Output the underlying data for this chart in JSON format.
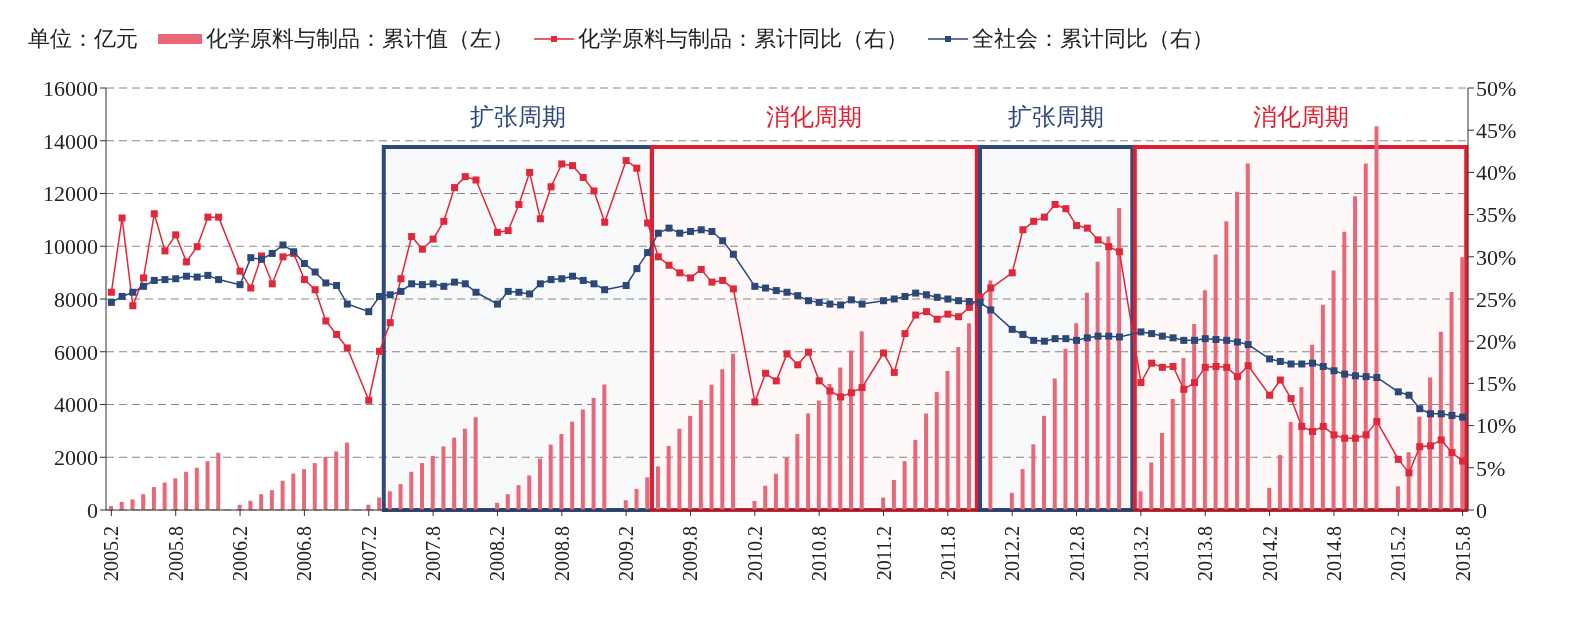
{
  "chart_data": {
    "type": "bar",
    "annotations": [
      "单位：亿元"
    ],
    "x": [
      "2005-02",
      "2005-03",
      "2005-04",
      "2005-05",
      "2005-06",
      "2005-07",
      "2005-08",
      "2005-09",
      "2005-10",
      "2005-11",
      "2005-12",
      "2006-02",
      "2006-03",
      "2006-04",
      "2006-05",
      "2006-06",
      "2006-07",
      "2006-08",
      "2006-09",
      "2006-10",
      "2006-11",
      "2006-12",
      "2007-02",
      "2007-03",
      "2007-04",
      "2007-05",
      "2007-06",
      "2007-07",
      "2007-08",
      "2007-09",
      "2007-10",
      "2007-11",
      "2007-12",
      "2008-02",
      "2008-03",
      "2008-04",
      "2008-05",
      "2008-06",
      "2008-07",
      "2008-08",
      "2008-09",
      "2008-10",
      "2008-11",
      "2008-12",
      "2009-02",
      "2009-03",
      "2009-04",
      "2009-05",
      "2009-06",
      "2009-07",
      "2009-08",
      "2009-09",
      "2009-10",
      "2009-11",
      "2009-12",
      "2010-02",
      "2010-03",
      "2010-04",
      "2010-05",
      "2010-06",
      "2010-07",
      "2010-08",
      "2010-09",
      "2010-10",
      "2010-11",
      "2010-12",
      "2011-02",
      "2011-03",
      "2011-04",
      "2011-05",
      "2011-06",
      "2011-07",
      "2011-08",
      "2011-09",
      "2011-10",
      "2011-11",
      "2011-12",
      "2012-02",
      "2012-03",
      "2012-04",
      "2012-05",
      "2012-06",
      "2012-07",
      "2012-08",
      "2012-09",
      "2012-10",
      "2012-11",
      "2012-12",
      "2013-02",
      "2013-03",
      "2013-04",
      "2013-05",
      "2013-06",
      "2013-07",
      "2013-08",
      "2013-09",
      "2013-10",
      "2013-11",
      "2013-12",
      "2014-02",
      "2014-03",
      "2014-04",
      "2014-05",
      "2014-06",
      "2014-07",
      "2014-08",
      "2014-09",
      "2014-10",
      "2014-11",
      "2014-12",
      "2015-02",
      "2015-03",
      "2015-04",
      "2015-05",
      "2015-06",
      "2015-07",
      "2015-08"
    ],
    "series": [
      {
        "name": "化学原料与制品：累计值（左）",
        "color": "#e8687a",
        "values": [
          150,
          310,
          400,
          600,
          870,
          1040,
          1200,
          1450,
          1600,
          1850,
          2170,
          200,
          350,
          600,
          750,
          1110,
          1380,
          1550,
          1780,
          2020,
          2220,
          2560,
          200,
          470,
          710,
          980,
          1450,
          1780,
          2050,
          2410,
          2740,
          3080,
          3520,
          270,
          600,
          940,
          1310,
          1950,
          2480,
          2880,
          3350,
          3810,
          4250,
          4760,
          370,
          800,
          1240,
          1650,
          2430,
          3080,
          3570,
          4170,
          4750,
          5340,
          5920,
          340,
          920,
          1370,
          1980,
          2880,
          3660,
          4150,
          4780,
          5400,
          6050,
          6780,
          470,
          1140,
          1850,
          2660,
          3660,
          4470,
          5270,
          6180,
          7080,
          null,
          8700,
          650,
          1550,
          2490,
          3570,
          4990,
          6110,
          7080,
          8240,
          9410,
          10370,
          11450,
          710,
          1800,
          2920,
          4210,
          5760,
          7050,
          8330,
          9690,
          10950,
          12070,
          13140,
          840,
          2090,
          3340,
          4660,
          6270,
          7780,
          9080,
          10550,
          11900,
          13140,
          14550,
          900,
          2190,
          3540,
          5020,
          6760,
          8270,
          9580
        ]
      },
      {
        "name": "化学原料与制品：累计同比（右）",
        "type": "line",
        "axis": "y2",
        "color": "#e0283a",
        "values": [
          25.8,
          34.6,
          24.2,
          27.5,
          35.1,
          30.7,
          32.6,
          29.4,
          31.2,
          34.7,
          34.7,
          28.3,
          26.3,
          30.1,
          26.8,
          30.0,
          30.4,
          27.3,
          26.1,
          22.4,
          20.8,
          19.2,
          13.0,
          18.8,
          22.2,
          27.4,
          32.4,
          30.9,
          32.1,
          34.2,
          38.2,
          39.5,
          39.1,
          32.9,
          33.1,
          36.2,
          40.0,
          34.5,
          38.3,
          41.0,
          40.8,
          39.4,
          37.8,
          34.1,
          41.4,
          40.5,
          34.0,
          30.0,
          29.0,
          28.1,
          27.5,
          28.5,
          27.0,
          27.2,
          26.2,
          12.8,
          16.2,
          15.3,
          18.5,
          17.2,
          18.7,
          15.3,
          14.1,
          13.4,
          13.9,
          14.5,
          18.6,
          16.3,
          20.9,
          23.1,
          23.5,
          22.6,
          23.2,
          22.9,
          24.0,
          25.2,
          26.3,
          28.1,
          33.2,
          34.2,
          34.7,
          36.2,
          35.7,
          33.7,
          33.4,
          32.0,
          31.2,
          30.6,
          15.1,
          17.4,
          16.9,
          17.0,
          14.3,
          15.1,
          16.9,
          17.0,
          16.9,
          15.8,
          17.1,
          13.6,
          15.4,
          13.2,
          9.9,
          9.3,
          9.9,
          8.9,
          8.5,
          8.5,
          8.9,
          10.5,
          6.0,
          4.4,
          7.5,
          7.6,
          8.3,
          6.8,
          5.8
        ]
      },
      {
        "name": "全社会：累计同比（右）",
        "type": "line",
        "axis": "y2",
        "color": "#2b4878",
        "values": [
          24.6,
          25.3,
          25.8,
          26.5,
          27.2,
          27.3,
          27.4,
          27.7,
          27.6,
          27.8,
          27.3,
          26.7,
          29.9,
          29.7,
          30.4,
          31.4,
          30.6,
          29.2,
          28.2,
          26.9,
          26.6,
          24.4,
          23.5,
          25.3,
          25.5,
          25.9,
          26.8,
          26.7,
          26.8,
          26.5,
          27.0,
          26.8,
          25.8,
          24.4,
          25.9,
          25.8,
          25.6,
          26.8,
          27.3,
          27.4,
          27.7,
          27.2,
          26.8,
          26.1,
          26.6,
          28.6,
          30.5,
          32.8,
          33.4,
          32.8,
          33.0,
          33.2,
          33.0,
          31.9,
          30.3,
          26.5,
          26.3,
          26.0,
          25.8,
          25.4,
          24.8,
          24.6,
          24.4,
          24.3,
          24.9,
          24.4,
          24.8,
          25.0,
          25.3,
          25.7,
          25.5,
          25.2,
          25.0,
          24.8,
          24.7,
          24.6,
          23.7,
          21.4,
          20.8,
          20.1,
          20.0,
          20.3,
          20.3,
          20.1,
          20.4,
          20.6,
          20.6,
          20.5,
          21.1,
          20.9,
          20.6,
          20.4,
          20.1,
          20.1,
          20.3,
          20.2,
          20.1,
          19.9,
          19.6,
          17.9,
          17.6,
          17.3,
          17.3,
          17.4,
          17.0,
          16.5,
          16.1,
          15.9,
          15.8,
          15.7,
          14.0,
          13.6,
          12.0,
          11.4,
          11.4,
          11.2,
          11.0
        ]
      }
    ],
    "xlim": [
      "2005-01-16",
      "2015-08-16"
    ],
    "xticks": [
      {
        "value": "2005-02",
        "label": "2005.2"
      },
      {
        "value": "2005-08",
        "label": "2005.8"
      },
      {
        "value": "2006-02",
        "label": "2006.2"
      },
      {
        "value": "2006-08",
        "label": "2006.8"
      },
      {
        "value": "2007-02",
        "label": "2007.2"
      },
      {
        "value": "2007-08",
        "label": "2007.8"
      },
      {
        "value": "2008-02",
        "label": "2008.2"
      },
      {
        "value": "2008-08",
        "label": "2008.8"
      },
      {
        "value": "2009-02",
        "label": "2009.2"
      },
      {
        "value": "2009-08",
        "label": "2009.8"
      },
      {
        "value": "2010-02",
        "label": "2010.2"
      },
      {
        "value": "2010-08",
        "label": "2010.8"
      },
      {
        "value": "2011-02",
        "label": "2011.2"
      },
      {
        "value": "2011-08",
        "label": "2011.8"
      },
      {
        "value": "2012-02",
        "label": "2012.2"
      },
      {
        "value": "2012-08",
        "label": "2012.8"
      },
      {
        "value": "2013-02",
        "label": "2013.2"
      },
      {
        "value": "2013-08",
        "label": "2013.8"
      },
      {
        "value": "2014-02",
        "label": "2014.2"
      },
      {
        "value": "2014-08",
        "label": "2014.8"
      },
      {
        "value": "2015-02",
        "label": "2015.2"
      },
      {
        "value": "2015-08",
        "label": "2015.8"
      }
    ],
    "ylim": [
      0,
      16000
    ],
    "yticks": [
      0,
      2000,
      4000,
      6000,
      8000,
      10000,
      12000,
      14000,
      16000
    ],
    "y2lim": [
      0,
      50
    ],
    "y2ticks": [
      {
        "value": 0,
        "label": "0"
      },
      {
        "value": 5,
        "label": "5%"
      },
      {
        "value": 10,
        "label": "10%"
      },
      {
        "value": 15,
        "label": "15%"
      },
      {
        "value": 20,
        "label": "20%"
      },
      {
        "value": 25,
        "label": "25%"
      },
      {
        "value": 30,
        "label": "30%"
      },
      {
        "value": 35,
        "label": "35%"
      },
      {
        "value": 40,
        "label": "40%"
      },
      {
        "value": 45,
        "label": "45%"
      },
      {
        "value": 50,
        "label": "50%"
      }
    ],
    "bands": [
      {
        "axis": "x",
        "from": "2007-03-13",
        "to": "2009-04-13",
        "label": "扩张周期",
        "color": "#2e4a7a"
      },
      {
        "axis": "x",
        "from": "2009-04-13",
        "to": "2011-10-22",
        "label": "消化周期",
        "color": "#e02030"
      },
      {
        "axis": "x",
        "from": "2011-11-01",
        "to": "2013-01-07",
        "label": "扩张周期",
        "color": "#2e4a7a"
      },
      {
        "axis": "x",
        "from": "2013-01-14",
        "to": "2015-08-11",
        "label": "消化周期",
        "color": "#e02030"
      }
    ],
    "grid": "y",
    "legend": "top",
    "marker": "square",
    "line_style": "solid"
  }
}
